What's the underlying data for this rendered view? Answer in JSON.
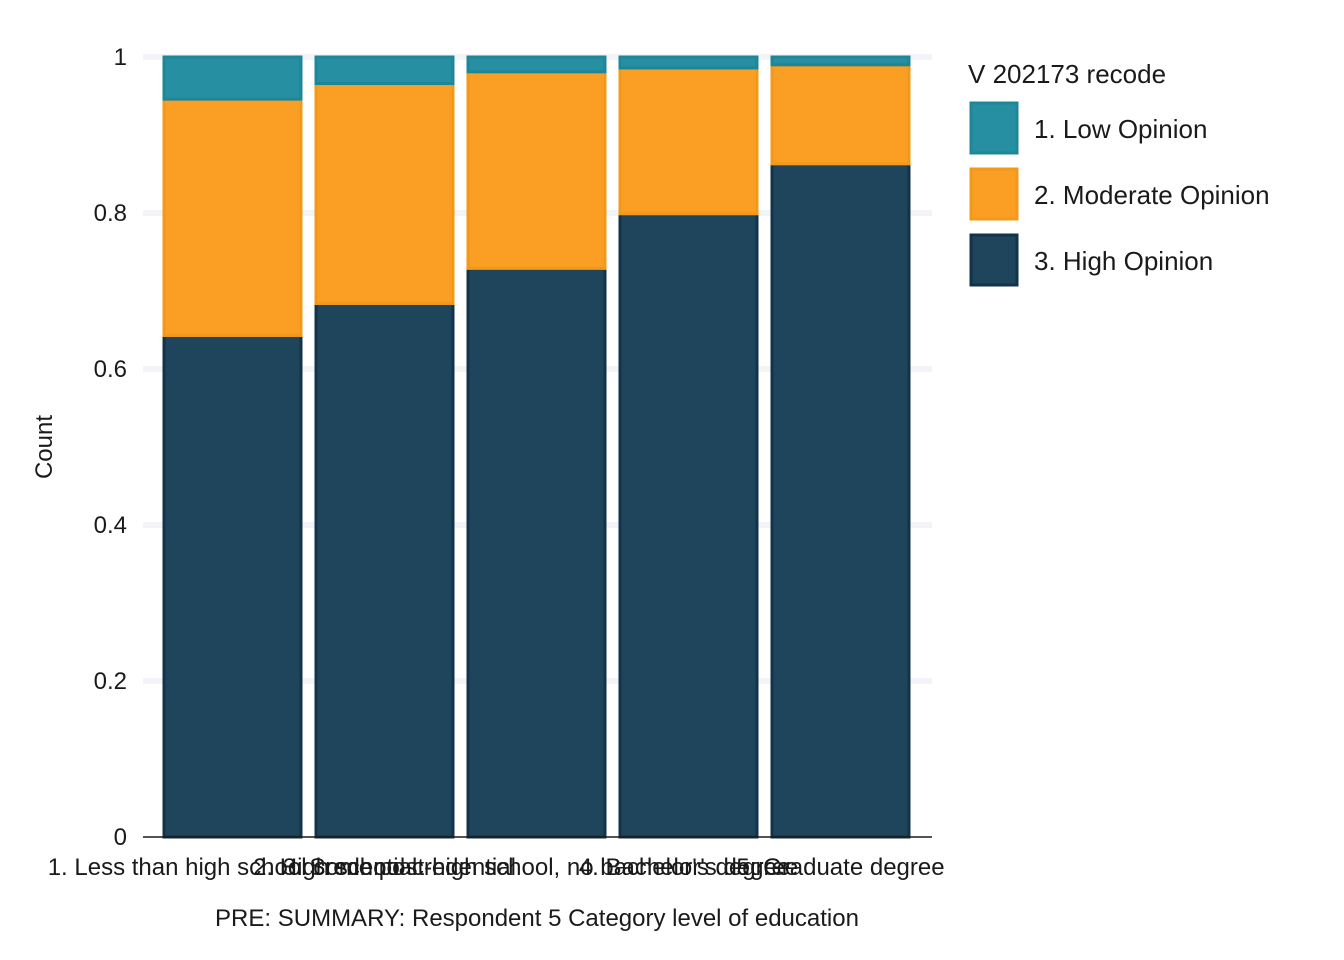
{
  "chart_data": {
    "type": "bar",
    "stacked": true,
    "categories": [
      "1. Less than high school credential",
      "2. High school credential",
      "3. Some post-high school, no bachelor's degree",
      "4. Bachelor's degree",
      "5. Graduate degree"
    ],
    "series": [
      {
        "name": "3. High Opinion",
        "color": "#1f455c",
        "border": "#12334a",
        "values": [
          0.643,
          0.684,
          0.729,
          0.799,
          0.863
        ]
      },
      {
        "name": "2. Moderate Opinion",
        "color": "#fb9e24",
        "border": "#f39818",
        "values": [
          0.303,
          0.282,
          0.252,
          0.187,
          0.127
        ]
      },
      {
        "name": "1. Low Opinion",
        "color": "#2690a2",
        "border": "#1d8698",
        "values": [
          0.054,
          0.034,
          0.019,
          0.014,
          0.01
        ]
      }
    ],
    "xlabel": "PRE: SUMMARY: Respondent 5 Category level of education",
    "ylabel": "Count",
    "ylim": [
      0,
      1
    ],
    "yticks": [
      0,
      0.2,
      0.4,
      0.6,
      0.8,
      1
    ],
    "ytick_labels": [
      "0",
      "0.2",
      "0.4",
      "0.6",
      "0.8",
      "1"
    ],
    "legend": {
      "title": "V 202173 recode",
      "placement": "right",
      "entries": [
        "1. Low Opinion",
        "2. Moderate Opinion",
        "3. High Opinion"
      ]
    },
    "grid": true
  }
}
